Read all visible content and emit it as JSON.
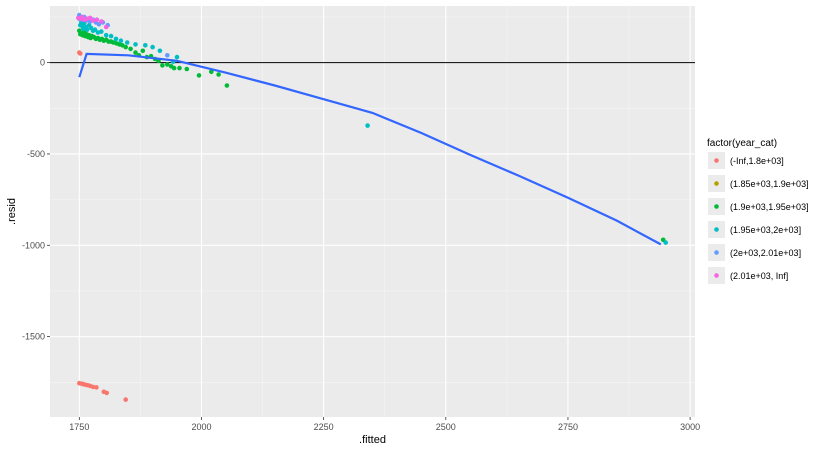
{
  "chart_data": {
    "type": "scatter",
    "xlabel": ".fitted",
    "ylabel": ".resid",
    "xlim": [
      1690,
      3010
    ],
    "ylim": [
      -1940,
      310
    ],
    "x_ticks": [
      1750,
      2000,
      2250,
      2500,
      2750,
      3000
    ],
    "y_ticks": [
      0,
      -500,
      -1000,
      -1500
    ],
    "x_tick_labels": [
      "1750",
      "2000",
      "2250",
      "2500",
      "2750",
      "3000"
    ],
    "y_tick_labels": [
      "0",
      "-500",
      "-1000",
      "-1500"
    ],
    "grid": true,
    "reference_line": {
      "y": 0
    },
    "legend": {
      "title": "factor(year_cat)",
      "placement": "right",
      "entries": [
        "(-Inf,1.8e+03]",
        "(1.85e+03,1.9e+03]",
        "(1.9e+03,1.95e+03]",
        "(1.95e+03,2e+03]",
        "(2e+03,2.01e+03]",
        "(2.01e+03, Inf]"
      ]
    },
    "series": [
      {
        "name": "(-Inf,1.8e+03]",
        "color": "#F8766D",
        "points": [
          [
            1750,
            55
          ],
          [
            1752,
            50
          ],
          [
            1750,
            -1755
          ],
          [
            1755,
            -1758
          ],
          [
            1758,
            -1760
          ],
          [
            1762,
            -1763
          ],
          [
            1767,
            -1766
          ],
          [
            1772,
            -1770
          ],
          [
            1778,
            -1775
          ],
          [
            1785,
            -1778
          ],
          [
            1800,
            -1802
          ],
          [
            1806,
            -1808
          ],
          [
            1845,
            -1845
          ]
        ]
      },
      {
        "name": "(1.85e+03,1.9e+03]",
        "color": "#B79F00",
        "points": []
      },
      {
        "name": "(1.9e+03,1.95e+03]",
        "color": "#00BA38",
        "points": [
          [
            1750,
            175
          ],
          [
            1752,
            155
          ],
          [
            1755,
            160
          ],
          [
            1757,
            150
          ],
          [
            1760,
            170
          ],
          [
            1762,
            145
          ],
          [
            1765,
            155
          ],
          [
            1768,
            140
          ],
          [
            1770,
            150
          ],
          [
            1773,
            135
          ],
          [
            1776,
            145
          ],
          [
            1780,
            140
          ],
          [
            1784,
            130
          ],
          [
            1788,
            135
          ],
          [
            1792,
            125
          ],
          [
            1796,
            130
          ],
          [
            1800,
            120
          ],
          [
            1805,
            125
          ],
          [
            1810,
            115
          ],
          [
            1815,
            115
          ],
          [
            1820,
            110
          ],
          [
            1826,
            105
          ],
          [
            1832,
            100
          ],
          [
            1838,
            95
          ],
          [
            1845,
            85
          ],
          [
            1855,
            75
          ],
          [
            1865,
            55
          ],
          [
            1872,
            40
          ],
          [
            1880,
            65
          ],
          [
            1888,
            30
          ],
          [
            1897,
            35
          ],
          [
            1905,
            20
          ],
          [
            1912,
            10
          ],
          [
            1920,
            -15
          ],
          [
            1930,
            -10
          ],
          [
            1938,
            -20
          ],
          [
            1944,
            -30
          ],
          [
            1955,
            -30
          ],
          [
            1970,
            -35
          ],
          [
            1995,
            -70
          ],
          [
            2020,
            -50
          ],
          [
            2035,
            -65
          ],
          [
            2052,
            -125
          ],
          [
            2945,
            -970
          ]
        ]
      },
      {
        "name": "(1.95e+03,2e+03]",
        "color": "#00BFC4",
        "points": [
          [
            1750,
            240
          ],
          [
            1752,
            205
          ],
          [
            1754,
            220
          ],
          [
            1756,
            200
          ],
          [
            1758,
            185
          ],
          [
            1760,
            215
          ],
          [
            1763,
            195
          ],
          [
            1766,
            180
          ],
          [
            1770,
            205
          ],
          [
            1774,
            190
          ],
          [
            1778,
            175
          ],
          [
            1782,
            180
          ],
          [
            1788,
            165
          ],
          [
            1795,
            170
          ],
          [
            1805,
            150
          ],
          [
            1815,
            145
          ],
          [
            1825,
            130
          ],
          [
            1835,
            120
          ],
          [
            1848,
            110
          ],
          [
            1865,
            100
          ],
          [
            1885,
            95
          ],
          [
            1900,
            85
          ],
          [
            1915,
            65
          ],
          [
            1942,
            5
          ],
          [
            1950,
            30
          ],
          [
            2340,
            -345
          ],
          [
            2950,
            -985
          ]
        ]
      },
      {
        "name": "(2e+03,2.01e+03]",
        "color": "#619CFF",
        "points": [
          [
            1750,
            260
          ],
          [
            1753,
            245
          ],
          [
            1756,
            235
          ],
          [
            1760,
            250
          ],
          [
            1764,
            230
          ],
          [
            1768,
            240
          ],
          [
            1772,
            225
          ],
          [
            1778,
            235
          ],
          [
            1784,
            220
          ],
          [
            1790,
            210
          ],
          [
            1798,
            220
          ],
          [
            1808,
            205
          ],
          [
            1930,
            40
          ]
        ]
      },
      {
        "name": "(2.01e+03, Inf]",
        "color": "#F564E3",
        "points": [
          [
            1748,
            245
          ],
          [
            1752,
            240
          ],
          [
            1756,
            250
          ],
          [
            1760,
            235
          ],
          [
            1766,
            240
          ],
          [
            1772,
            245
          ],
          [
            1778,
            230
          ],
          [
            1786,
            235
          ],
          [
            1795,
            225
          ],
          [
            1805,
            195
          ]
        ]
      }
    ],
    "smooth_line": {
      "color": "#3366FF",
      "points": [
        [
          1750,
          -80
        ],
        [
          1765,
          48
        ],
        [
          1850,
          40
        ],
        [
          1950,
          10
        ],
        [
          2050,
          -55
        ],
        [
          2150,
          -125
        ],
        [
          2250,
          -200
        ],
        [
          2350,
          -275
        ],
        [
          2450,
          -385
        ],
        [
          2550,
          -505
        ],
        [
          2650,
          -620
        ],
        [
          2750,
          -740
        ],
        [
          2850,
          -865
        ],
        [
          2940,
          -995
        ]
      ]
    }
  }
}
